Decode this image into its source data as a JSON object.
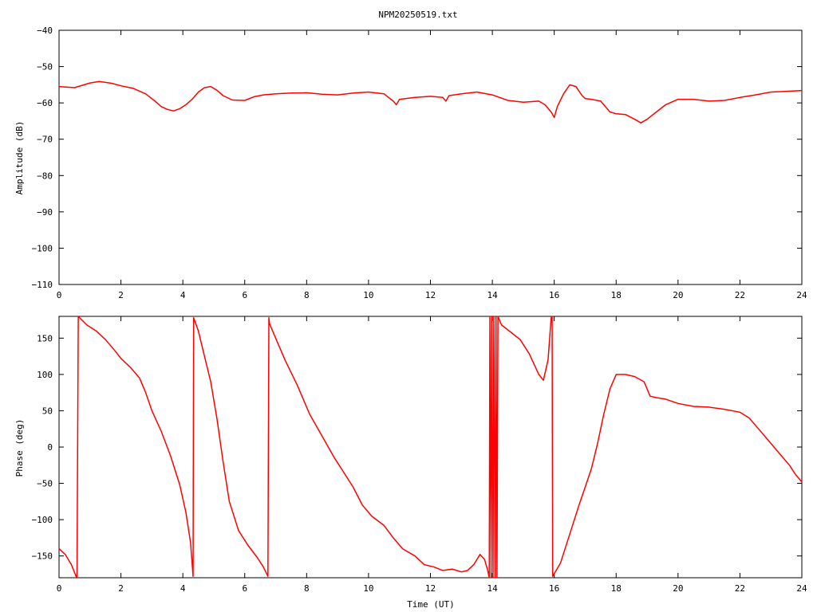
{
  "title": "NPM20250519.txt",
  "colors": {
    "series": "#ff0000",
    "axis": "#000000",
    "background": "#ffffff"
  },
  "chart_data": [
    {
      "type": "line",
      "title": "NPM20250519.txt",
      "xlabel": "",
      "ylabel": "Amplitude (dB)",
      "xlim": [
        0,
        24
      ],
      "ylim": [
        -110,
        -40
      ],
      "xticks": [
        0,
        2,
        4,
        6,
        8,
        10,
        12,
        14,
        16,
        18,
        20,
        22,
        24
      ],
      "yticks": [
        -110,
        -100,
        -90,
        -80,
        -70,
        -60,
        -50,
        -40
      ],
      "grid": false,
      "series": [
        {
          "x": [
            0,
            0.5,
            1.0,
            1.3,
            1.7,
            2.0,
            2.4,
            2.8,
            3.1,
            3.3,
            3.5,
            3.7,
            3.9,
            4.1,
            4.3,
            4.5,
            4.7,
            4.9,
            5.1,
            5.3,
            5.6,
            6.0,
            6.3,
            6.6,
            7.0,
            7.5,
            8.0,
            8.5,
            9.0,
            9.5,
            10.0,
            10.5,
            10.8,
            10.9,
            11.0,
            11.5,
            12.0,
            12.4,
            12.5,
            12.6,
            13.0,
            13.5,
            14.0,
            14.5,
            15.0,
            15.5,
            15.7,
            15.9,
            16.0,
            16.1,
            16.3,
            16.5,
            16.7,
            16.9,
            17.0,
            17.2,
            17.5,
            17.8,
            18.0,
            18.3,
            18.6,
            18.8,
            19.0,
            19.3,
            19.6,
            20.0,
            20.5,
            21.0,
            21.5,
            22.0,
            22.5,
            23.0,
            23.5,
            24.0
          ],
          "y": [
            -55.5,
            -55.8,
            -54.5,
            -54.1,
            -54.6,
            -55.3,
            -56.0,
            -57.5,
            -59.5,
            -61.0,
            -61.8,
            -62.2,
            -61.6,
            -60.5,
            -59.0,
            -57.0,
            -55.8,
            -55.5,
            -56.5,
            -58.0,
            -59.2,
            -59.3,
            -58.3,
            -57.8,
            -57.5,
            -57.3,
            -57.2,
            -57.6,
            -57.8,
            -57.3,
            -57.0,
            -57.5,
            -59.5,
            -60.5,
            -59.0,
            -58.5,
            -58.2,
            -58.5,
            -59.5,
            -58.0,
            -57.5,
            -57.0,
            -57.8,
            -59.3,
            -59.8,
            -59.5,
            -60.5,
            -62.5,
            -64.0,
            -61.0,
            -57.5,
            -55.0,
            -55.5,
            -58.0,
            -58.8,
            -59.0,
            -59.5,
            -62.5,
            -63.0,
            -63.2,
            -64.5,
            -65.5,
            -64.5,
            -62.5,
            -60.5,
            -59.0,
            -59.0,
            -59.5,
            -59.3,
            -58.5,
            -57.8,
            -57.0,
            -56.8,
            -56.6
          ]
        }
      ]
    },
    {
      "type": "line",
      "title": "",
      "xlabel": "Time (UT)",
      "ylabel": "Phase (deg)",
      "xlim": [
        0,
        24
      ],
      "ylim": [
        -180,
        180
      ],
      "xticks": [
        0,
        2,
        4,
        6,
        8,
        10,
        12,
        14,
        16,
        18,
        20,
        22,
        24
      ],
      "yticks": [
        -150,
        -100,
        -50,
        0,
        50,
        100,
        150
      ],
      "grid": false,
      "series": [
        {
          "x": [
            0,
            0.2,
            0.4,
            0.55,
            0.58,
            0.62,
            0.9,
            1.2,
            1.5,
            1.8,
            2.0,
            2.3,
            2.6,
            2.8,
            3.0,
            3.3,
            3.6,
            3.9,
            4.1,
            4.25,
            4.33,
            4.35,
            4.5,
            4.7,
            4.9,
            5.1,
            5.3,
            5.5,
            5.8,
            6.1,
            6.4,
            6.6,
            6.75,
            6.78,
            6.8,
            7.0,
            7.3,
            7.7,
            8.1,
            8.5,
            8.9,
            9.2,
            9.5,
            9.8,
            10.1,
            10.5,
            10.8,
            11.1,
            11.5,
            11.8,
            12.1,
            12.4,
            12.7,
            13.0,
            13.2,
            13.4,
            13.6,
            13.75,
            13.85,
            13.9,
            13.92,
            13.96,
            13.98,
            14.02,
            14.05,
            14.09,
            14.12,
            14.15,
            14.18,
            14.3,
            14.6,
            14.9,
            15.2,
            15.5,
            15.65,
            15.8,
            15.85,
            15.9,
            15.93,
            15.95,
            16.2,
            16.5,
            16.8,
            17.0,
            17.2,
            17.4,
            17.6,
            17.8,
            18.0,
            18.3,
            18.6,
            18.9,
            19.1,
            19.3,
            19.6,
            20.0,
            20.5,
            21.0,
            21.5,
            22.0,
            22.3,
            22.6,
            23.0,
            23.3,
            23.6,
            23.8,
            24.0
          ],
          "y": [
            -140,
            -148,
            -162,
            -178,
            -180,
            180,
            168,
            160,
            148,
            133,
            122,
            110,
            95,
            75,
            50,
            22,
            -12,
            -52,
            -90,
            -132,
            -178,
            178,
            160,
            125,
            90,
            40,
            -20,
            -75,
            -115,
            -135,
            -152,
            -165,
            -178,
            178,
            170,
            150,
            120,
            85,
            45,
            15,
            -15,
            -35,
            -55,
            -80,
            -95,
            -108,
            -125,
            -140,
            -150,
            -162,
            -165,
            -170,
            -168,
            -172,
            -170,
            -162,
            -148,
            -155,
            -170,
            -180,
            180,
            -180,
            180,
            -180,
            180,
            -180,
            180,
            -180,
            180,
            168,
            158,
            148,
            128,
            100,
            92,
            120,
            148,
            178,
            180,
            -178,
            -160,
            -120,
            -80,
            -55,
            -30,
            5,
            45,
            80,
            100,
            100,
            97,
            90,
            70,
            68,
            66,
            60,
            56,
            55,
            52,
            48,
            40,
            25,
            5,
            -10,
            -25,
            -38,
            -48
          ]
        }
      ]
    }
  ]
}
